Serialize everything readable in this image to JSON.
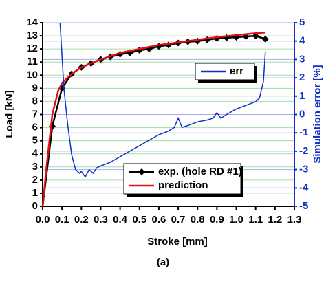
{
  "chart_data": {
    "type": "line",
    "caption": "(a)",
    "x_label": "Stroke [mm]",
    "y_label": "Load [kN]",
    "y2_label": "Simulation error [%]",
    "xlim": [
      0,
      1.3
    ],
    "xticks": [
      {
        "value": 0,
        "label": "0.0"
      },
      0.1,
      0.2,
      0.3,
      0.4,
      0.5,
      0.6,
      0.7,
      0.8,
      0.9,
      {
        "value": 1,
        "label": "1.0"
      },
      1.1,
      1.2,
      1.3
    ],
    "ylim": [
      0,
      14
    ],
    "yticks": [
      0,
      1,
      2,
      3,
      4,
      5,
      6,
      7,
      8,
      9,
      10,
      11,
      12,
      13,
      14
    ],
    "y2lim": [
      -5,
      5
    ],
    "y2ticks": [
      -5,
      -4,
      -3,
      -2,
      -1,
      0,
      1,
      2,
      3,
      4,
      5
    ],
    "grid": true,
    "grid_color": "#a6dca6",
    "grid2_color": "#a9a9f0",
    "y2_color": "#1030c8",
    "series": [
      {
        "name": "exp. (hole RD #1)",
        "color": "#000000",
        "marker": "diamond",
        "x": [
          0,
          0.05,
          0.1,
          0.15,
          0.2,
          0.25,
          0.3,
          0.35,
          0.4,
          0.45,
          0.5,
          0.55,
          0.6,
          0.65,
          0.7,
          0.75,
          0.8,
          0.85,
          0.9,
          0.95,
          1.0,
          1.05,
          1.1,
          1.15
        ],
        "values": [
          0,
          6.1,
          9.0,
          10.1,
          10.6,
          10.9,
          11.2,
          11.4,
          11.6,
          11.7,
          11.9,
          12.0,
          12.2,
          12.3,
          12.45,
          12.55,
          12.6,
          12.7,
          12.8,
          12.85,
          12.9,
          12.95,
          13.0,
          12.75
        ]
      },
      {
        "name": "prediction",
        "color": "#e01010",
        "x": [
          0,
          0.02,
          0.05,
          0.08,
          0.1,
          0.15,
          0.2,
          0.3,
          0.4,
          0.5,
          0.6,
          0.7,
          0.8,
          0.9,
          1.0,
          1.1,
          1.15
        ],
        "values": [
          0,
          3,
          7,
          8.8,
          9.4,
          10.1,
          10.6,
          11.2,
          11.7,
          12.0,
          12.3,
          12.5,
          12.7,
          12.9,
          13.05,
          13.2,
          13.25
        ]
      },
      {
        "name": "err",
        "color": "#1030c8",
        "axis": "y2",
        "x": [
          0.09,
          0.1,
          0.11,
          0.13,
          0.15,
          0.17,
          0.19,
          0.2,
          0.22,
          0.24,
          0.26,
          0.28,
          0.3,
          0.35,
          0.4,
          0.45,
          0.5,
          0.55,
          0.6,
          0.65,
          0.68,
          0.7,
          0.72,
          0.75,
          0.8,
          0.85,
          0.88,
          0.9,
          0.92,
          0.95,
          1.0,
          1.05,
          1.1,
          1.12,
          1.14,
          1.15
        ],
        "values": [
          5,
          3.2,
          1.4,
          -0.6,
          -2.2,
          -3.0,
          -3.2,
          -3.1,
          -3.4,
          -3.0,
          -3.2,
          -2.9,
          -2.8,
          -2.6,
          -2.3,
          -2.0,
          -1.7,
          -1.4,
          -1.1,
          -0.9,
          -0.7,
          -0.2,
          -0.7,
          -0.6,
          -0.4,
          -0.3,
          -0.2,
          0.1,
          -0.2,
          0.0,
          0.3,
          0.5,
          0.7,
          0.9,
          1.8,
          3.4
        ]
      }
    ],
    "legend": [
      {
        "series": [
          2
        ]
      },
      {
        "series": [
          0,
          1
        ]
      }
    ]
  }
}
